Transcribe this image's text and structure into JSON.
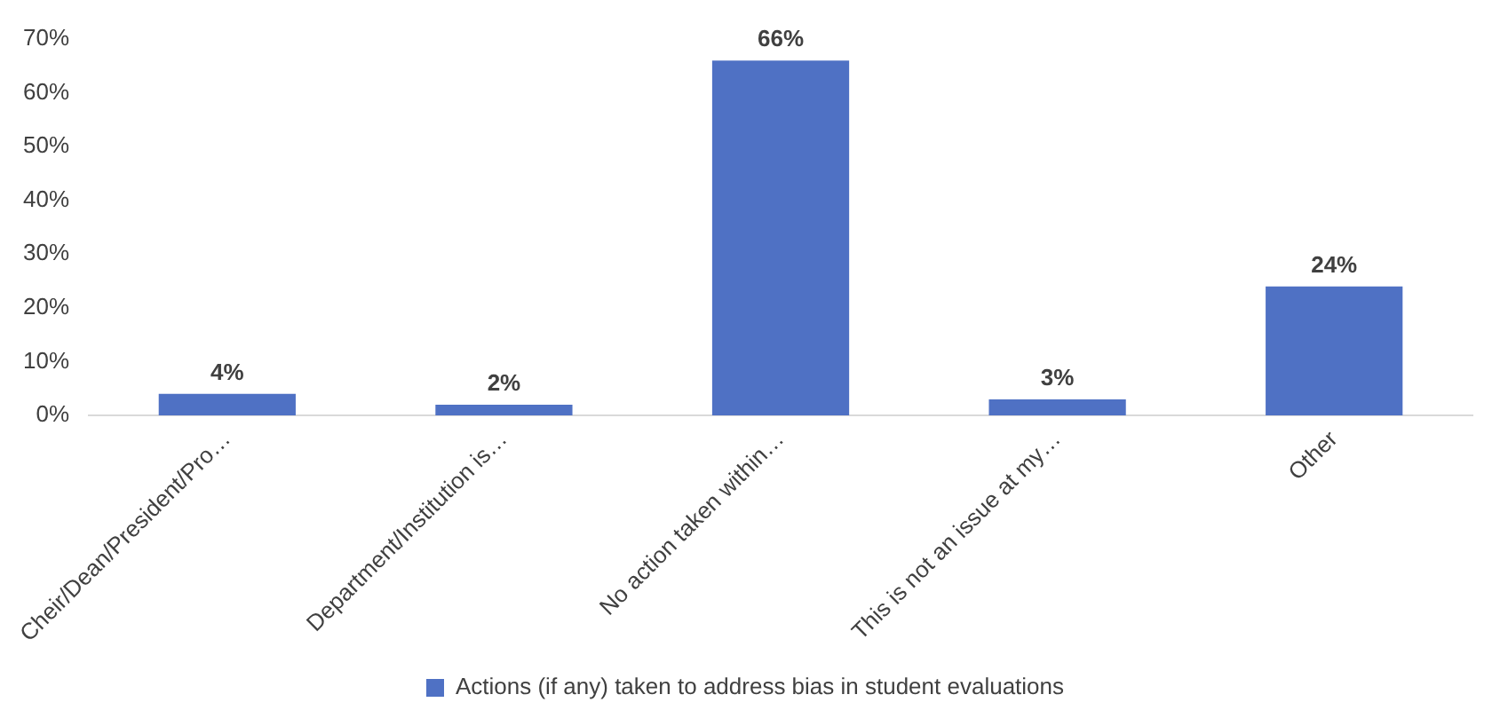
{
  "chart_data": {
    "type": "bar",
    "categories": [
      "Cheir/Dean/President/Pro…",
      "Department/Institution is…",
      "No action taken within…",
      "This is not an issue at my…",
      "Other"
    ],
    "series": [
      {
        "name": "Actions (if any) taken to address bias in student evaluations",
        "color": "#4f71c4",
        "values": [
          4,
          2,
          66,
          3,
          24
        ],
        "value_labels": [
          "4%",
          "2%",
          "66%",
          "3%",
          "24%"
        ]
      }
    ],
    "ylim": [
      0,
      70
    ],
    "yticks": [
      {
        "value": 0,
        "label": "0%"
      },
      {
        "value": 10,
        "label": "10%"
      },
      {
        "value": 20,
        "label": "20%"
      },
      {
        "value": 30,
        "label": "30%"
      },
      {
        "value": 40,
        "label": "40%"
      },
      {
        "value": 50,
        "label": "50%"
      },
      {
        "value": 60,
        "label": "60%"
      },
      {
        "value": 70,
        "label": "70%"
      }
    ],
    "grid": false,
    "legend": "bottom"
  }
}
